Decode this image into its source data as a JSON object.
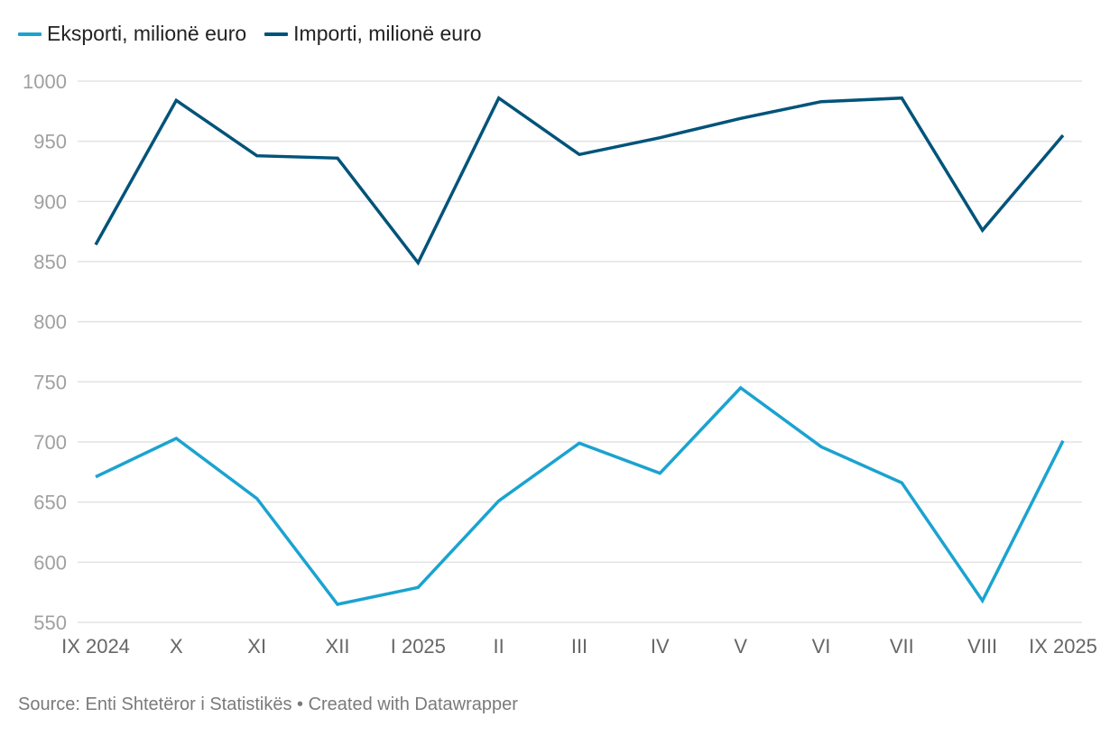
{
  "chart_data": {
    "type": "line",
    "title": "",
    "xlabel": "",
    "ylabel": "",
    "categories": [
      "IX 2024",
      "X",
      "XI",
      "XII",
      "I 2025",
      "II",
      "III",
      "IV",
      "V",
      "VI",
      "VII",
      "VIII",
      "IX 2025"
    ],
    "ylim": [
      550,
      1000
    ],
    "yticks": [
      550,
      600,
      650,
      700,
      750,
      800,
      850,
      900,
      950,
      1000
    ],
    "grid": true,
    "legend_position": "top-left",
    "series": [
      {
        "name": "Eksporti, milionë euro",
        "color": "#1ba3d0",
        "values": [
          671,
          703,
          653,
          565,
          579,
          651,
          699,
          674,
          745,
          696,
          666,
          568,
          701
        ]
      },
      {
        "name": "Importi, milionë euro",
        "color": "#00537a",
        "values": [
          864,
          984,
          938,
          936,
          849,
          986,
          939,
          953,
          969,
          983,
          986,
          876,
          955
        ]
      }
    ]
  },
  "footer": {
    "text": "Source: Enti Shtetëror i Statistikës • Created with Datawrapper"
  }
}
